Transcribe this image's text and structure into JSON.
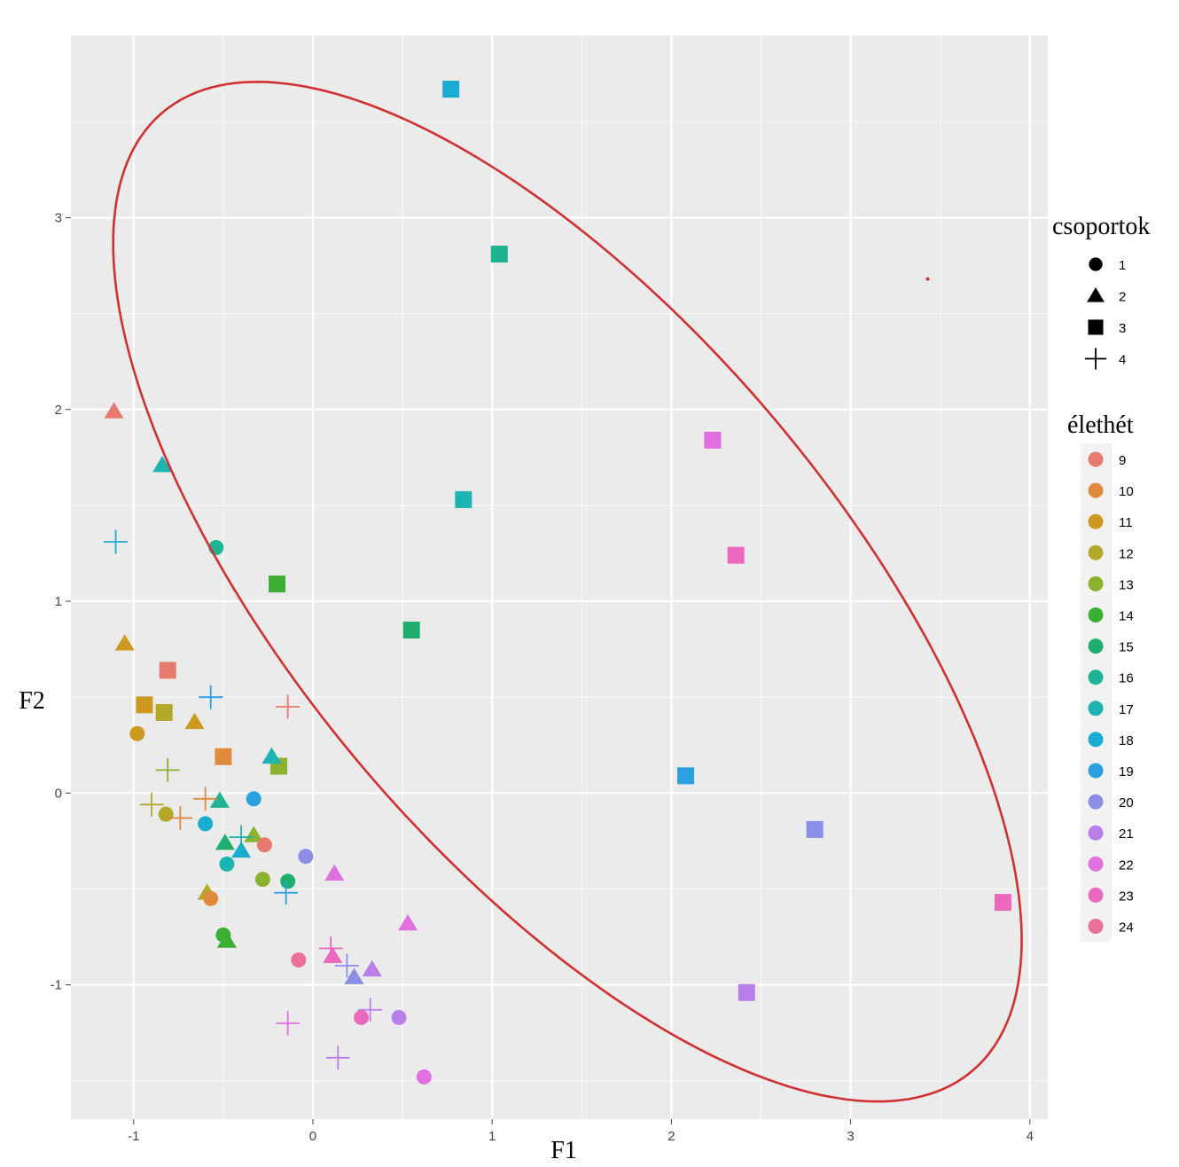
{
  "chart_data": {
    "type": "scatter",
    "xlabel": "F1",
    "ylabel": "F2",
    "xlim": [
      -1.35,
      4.1
    ],
    "ylim": [
      -1.7,
      3.95
    ],
    "xticks": [
      -1,
      0,
      1,
      2,
      3,
      4
    ],
    "yticks": [
      -1,
      0,
      1,
      2,
      3
    ],
    "tick_labels_x": [
      "-1",
      "0",
      "1",
      "2",
      "3",
      "4"
    ],
    "tick_labels_y": [
      "-1",
      "0",
      "1",
      "2",
      "3"
    ],
    "grid": true,
    "legend_shape": {
      "title": "csoportok",
      "placement": "right",
      "entries": [
        {
          "label": "1",
          "shape": "circle"
        },
        {
          "label": "2",
          "shape": "triangle"
        },
        {
          "label": "3",
          "shape": "square"
        },
        {
          "label": "4",
          "shape": "plus"
        }
      ]
    },
    "legend_color": {
      "title": "élethét",
      "placement": "right",
      "entries": [
        {
          "label": "9",
          "color": "#E7796F"
        },
        {
          "label": "10",
          "color": "#DF8A3C"
        },
        {
          "label": "11",
          "color": "#CC9A1E"
        },
        {
          "label": "12",
          "color": "#B2A82A"
        },
        {
          "label": "13",
          "color": "#8AB22C"
        },
        {
          "label": "14",
          "color": "#3DAE34"
        },
        {
          "label": "15",
          "color": "#1FAE6E"
        },
        {
          "label": "16",
          "color": "#1DB393"
        },
        {
          "label": "17",
          "color": "#1CB3B0"
        },
        {
          "label": "18",
          "color": "#19ACD0"
        },
        {
          "label": "19",
          "color": "#2B9FE0"
        },
        {
          "label": "20",
          "color": "#8A8EE6"
        },
        {
          "label": "21",
          "color": "#BA7EEA"
        },
        {
          "label": "22",
          "color": "#E06FE0"
        },
        {
          "label": "23",
          "color": "#EC68BE"
        },
        {
          "label": "24",
          "color": "#E8709A"
        }
      ]
    },
    "ellipse": {
      "color": "#D03030",
      "center": [
        1.42,
        1.05
      ],
      "semi_axis_major": 3.37,
      "semi_axis_minor": 1.46,
      "angle_deg": -47
    },
    "ellipse_center_marker": [
      3.43,
      2.68
    ],
    "points": [
      {
        "x": 0.77,
        "y": 3.67,
        "group": 3,
        "week": 18
      },
      {
        "x": 1.04,
        "y": 2.81,
        "group": 3,
        "week": 16
      },
      {
        "x": 2.23,
        "y": 1.84,
        "group": 3,
        "week": 22
      },
      {
        "x": 0.84,
        "y": 1.53,
        "group": 3,
        "week": 17
      },
      {
        "x": 2.36,
        "y": 1.24,
        "group": 3,
        "week": 23
      },
      {
        "x": -0.2,
        "y": 1.09,
        "group": 3,
        "week": 14
      },
      {
        "x": 0.55,
        "y": 0.85,
        "group": 3,
        "week": 15
      },
      {
        "x": -0.81,
        "y": 0.64,
        "group": 3,
        "week": 9
      },
      {
        "x": -0.94,
        "y": 0.46,
        "group": 3,
        "week": 11
      },
      {
        "x": -0.83,
        "y": 0.42,
        "group": 3,
        "week": 12
      },
      {
        "x": -0.5,
        "y": 0.19,
        "group": 3,
        "week": 10
      },
      {
        "x": -0.19,
        "y": 0.14,
        "group": 3,
        "week": 13
      },
      {
        "x": 2.08,
        "y": 0.09,
        "group": 3,
        "week": 19
      },
      {
        "x": 2.8,
        "y": -0.19,
        "group": 3,
        "week": 20
      },
      {
        "x": 3.85,
        "y": -0.57,
        "group": 3,
        "week": 23
      },
      {
        "x": 2.42,
        "y": -1.04,
        "group": 3,
        "week": 21
      },
      {
        "x": -1.11,
        "y": 1.99,
        "group": 2,
        "week": 9
      },
      {
        "x": -0.84,
        "y": 1.71,
        "group": 2,
        "week": 17
      },
      {
        "x": -1.05,
        "y": 0.78,
        "group": 2,
        "week": 11
      },
      {
        "x": -0.66,
        "y": 0.37,
        "group": 2,
        "week": 11
      },
      {
        "x": -0.23,
        "y": 0.19,
        "group": 2,
        "week": 17
      },
      {
        "x": -0.52,
        "y": -0.04,
        "group": 2,
        "week": 16
      },
      {
        "x": -0.49,
        "y": -0.26,
        "group": 2,
        "week": 15
      },
      {
        "x": -0.33,
        "y": -0.22,
        "group": 2,
        "week": 13
      },
      {
        "x": -0.4,
        "y": -0.3,
        "group": 2,
        "week": 18
      },
      {
        "x": 0.12,
        "y": -0.42,
        "group": 2,
        "week": 22
      },
      {
        "x": -0.59,
        "y": -0.52,
        "group": 2,
        "week": 12
      },
      {
        "x": 0.53,
        "y": -0.68,
        "group": 2,
        "week": 22
      },
      {
        "x": -0.48,
        "y": -0.77,
        "group": 2,
        "week": 14
      },
      {
        "x": 0.11,
        "y": -0.85,
        "group": 2,
        "week": 23
      },
      {
        "x": 0.33,
        "y": -0.92,
        "group": 2,
        "week": 21
      },
      {
        "x": 0.23,
        "y": -0.96,
        "group": 2,
        "week": 20
      },
      {
        "x": -0.54,
        "y": 1.28,
        "group": 1,
        "week": 16
      },
      {
        "x": -0.98,
        "y": 0.31,
        "group": 1,
        "week": 11
      },
      {
        "x": -0.33,
        "y": -0.03,
        "group": 1,
        "week": 19
      },
      {
        "x": -0.6,
        "y": -0.16,
        "group": 1,
        "week": 18
      },
      {
        "x": -0.82,
        "y": -0.11,
        "group": 1,
        "week": 12
      },
      {
        "x": -0.27,
        "y": -0.27,
        "group": 1,
        "week": 9
      },
      {
        "x": -0.48,
        "y": -0.37,
        "group": 1,
        "week": 17
      },
      {
        "x": -0.04,
        "y": -0.33,
        "group": 1,
        "week": 20
      },
      {
        "x": -0.28,
        "y": -0.45,
        "group": 1,
        "week": 13
      },
      {
        "x": -0.14,
        "y": -0.46,
        "group": 1,
        "week": 15
      },
      {
        "x": -0.57,
        "y": -0.55,
        "group": 1,
        "week": 10
      },
      {
        "x": -0.5,
        "y": -0.74,
        "group": 1,
        "week": 14
      },
      {
        "x": -0.08,
        "y": -0.87,
        "group": 1,
        "week": 24
      },
      {
        "x": 0.27,
        "y": -1.17,
        "group": 1,
        "week": 23
      },
      {
        "x": 0.48,
        "y": -1.17,
        "group": 1,
        "week": 21
      },
      {
        "x": 0.62,
        "y": -1.48,
        "group": 1,
        "week": 22
      },
      {
        "x": -1.1,
        "y": 1.31,
        "group": 4,
        "week": 18
      },
      {
        "x": -0.57,
        "y": 0.5,
        "group": 4,
        "week": 19
      },
      {
        "x": -0.14,
        "y": 0.45,
        "group": 4,
        "week": 9
      },
      {
        "x": -0.81,
        "y": 0.12,
        "group": 4,
        "week": 13
      },
      {
        "x": -0.9,
        "y": -0.06,
        "group": 4,
        "week": 12
      },
      {
        "x": -0.74,
        "y": -0.13,
        "group": 4,
        "week": 10
      },
      {
        "x": -0.6,
        "y": -0.03,
        "group": 4,
        "week": 10
      },
      {
        "x": -0.4,
        "y": -0.23,
        "group": 4,
        "week": 17
      },
      {
        "x": -0.15,
        "y": -0.52,
        "group": 4,
        "week": 19
      },
      {
        "x": 0.1,
        "y": -0.81,
        "group": 4,
        "week": 23
      },
      {
        "x": 0.19,
        "y": -0.9,
        "group": 4,
        "week": 20
      },
      {
        "x": 0.32,
        "y": -1.13,
        "group": 4,
        "week": 21
      },
      {
        "x": -0.14,
        "y": -1.2,
        "group": 4,
        "week": 22
      },
      {
        "x": 0.14,
        "y": -1.38,
        "group": 4,
        "week": 21
      }
    ]
  }
}
